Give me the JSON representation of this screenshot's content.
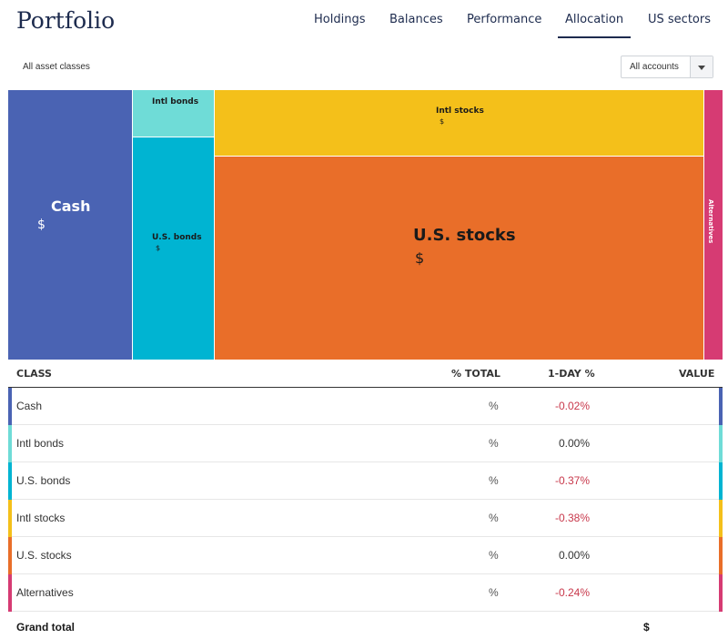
{
  "header": {
    "title": "Portfolio",
    "tabs": [
      {
        "label": "Holdings",
        "active": false
      },
      {
        "label": "Balances",
        "active": false
      },
      {
        "label": "Performance",
        "active": false
      },
      {
        "label": "Allocation",
        "active": true
      },
      {
        "label": "US sectors",
        "active": false
      }
    ]
  },
  "filter": {
    "label": "All asset classes",
    "account_select": "All accounts"
  },
  "treemap": {
    "tiles": [
      {
        "label": "Cash",
        "value": "$",
        "color": "#4a63b3"
      },
      {
        "label": "Intl bonds",
        "value": "",
        "color": "#6fdcd7"
      },
      {
        "label": "U.S. bonds",
        "value": "$",
        "color": "#00b4d2"
      },
      {
        "label": "Intl stocks",
        "value": "$",
        "color": "#f4c01a"
      },
      {
        "label": "U.S. stocks",
        "value": "$",
        "color": "#e96e29"
      },
      {
        "label": "Alternatives",
        "value": "",
        "color": "#d63b73"
      }
    ]
  },
  "table": {
    "headers": {
      "class": "CLASS",
      "pct_total": "% TOTAL",
      "one_day": "1-DAY %",
      "value": "VALUE"
    },
    "rows": [
      {
        "class": "Cash",
        "pct": "%",
        "day": "-0.02%",
        "color": "#4a63b3"
      },
      {
        "class": "Intl bonds",
        "pct": "%",
        "day": "0.00%",
        "color": "#6fdcd7"
      },
      {
        "class": "U.S. bonds",
        "pct": "%",
        "day": "-0.37%",
        "color": "#00b4d2"
      },
      {
        "class": "Intl stocks",
        "pct": "%",
        "day": "-0.38%",
        "color": "#f4c01a"
      },
      {
        "class": "U.S. stocks",
        "pct": "%",
        "day": "0.00%",
        "color": "#e96e29"
      },
      {
        "class": "Alternatives",
        "pct": "%",
        "day": "-0.24%",
        "color": "#d63b73"
      }
    ],
    "grand_total_label": "Grand total",
    "grand_total_value": "$"
  },
  "colors": {
    "accent": "#1d2b4e",
    "negative": "#c8384b"
  }
}
